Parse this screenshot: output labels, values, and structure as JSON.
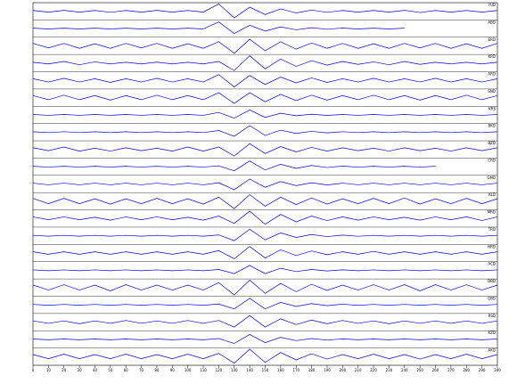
{
  "chart_data": {
    "type": "line",
    "x": [
      0,
      10,
      20,
      30,
      40,
      50,
      60,
      70,
      80,
      90,
      100,
      110,
      120,
      130,
      140,
      150,
      160,
      170,
      180,
      190,
      200,
      210,
      220,
      230,
      240,
      250,
      260,
      270,
      280,
      290,
      300
    ],
    "xlim": [
      0,
      300
    ],
    "xticks": [
      0,
      10,
      20,
      30,
      40,
      50,
      60,
      70,
      80,
      90,
      100,
      110,
      120,
      130,
      140,
      150,
      160,
      170,
      180,
      190,
      200,
      210,
      220,
      230,
      240,
      250,
      260,
      270,
      280,
      290,
      300
    ],
    "ylim": [
      -1,
      1
    ],
    "color": "#0000ff",
    "series": [
      {
        "name": "YUD",
        "values": [
          0.1,
          -0.1,
          0.12,
          -0.1,
          0.1,
          -0.12,
          0.1,
          -0.1,
          0.12,
          -0.1,
          0.1,
          -0.1,
          0.9,
          -0.8,
          0.5,
          -0.4,
          0.3,
          -0.2,
          0.15,
          -0.12,
          0.1,
          -0.1,
          0.1,
          -0.1,
          0.12,
          -0.15,
          0.1,
          -0.1,
          0.1,
          -0.1,
          0.1
        ]
      },
      {
        "name": "ABD",
        "values": [
          0.05,
          -0.05,
          0.05,
          -0.05,
          0.05,
          -0.05,
          0.05,
          -0.05,
          0.05,
          -0.05,
          0.05,
          -0.05,
          0.8,
          -0.6,
          0.4,
          -0.3,
          0.2,
          -0.15,
          0.1,
          -0.08,
          0.06,
          -0.05,
          0.05,
          -0.05,
          0.05,
          null,
          null,
          null,
          null,
          null,
          null
        ]
      },
      {
        "name": "ERD",
        "values": [
          0.3,
          -0.25,
          0.3,
          -0.3,
          0.25,
          -0.3,
          0.3,
          -0.25,
          0.3,
          -0.3,
          0.25,
          -0.3,
          0.5,
          -0.9,
          0.8,
          -0.6,
          0.5,
          -0.4,
          0.35,
          -0.3,
          0.3,
          -0.3,
          0.25,
          -0.3,
          0.3,
          -0.25,
          0.3,
          -0.3,
          0.25,
          -0.3,
          0.3
        ]
      },
      {
        "name": "KRD",
        "values": [
          0.1,
          -0.1,
          0.2,
          -0.2,
          0.15,
          -0.1,
          0.1,
          -0.1,
          0.12,
          -0.1,
          0.1,
          -0.1,
          0.2,
          -0.9,
          0.9,
          -0.7,
          0.5,
          -0.4,
          0.3,
          -0.25,
          0.2,
          -0.15,
          0.15,
          -0.2,
          0.2,
          -0.15,
          0.1,
          -0.1,
          0.1,
          -0.1,
          0.1
        ]
      },
      {
        "name": "ARD",
        "values": [
          0.2,
          -0.2,
          0.25,
          -0.2,
          0.2,
          -0.25,
          0.2,
          -0.2,
          0.25,
          -0.2,
          0.2,
          -0.2,
          0.7,
          -0.8,
          0.6,
          -0.5,
          0.4,
          -0.3,
          0.3,
          -0.25,
          0.2,
          -0.2,
          0.25,
          -0.2,
          0.2,
          -0.2,
          0.25,
          -0.2,
          0.2,
          -0.2,
          0.2
        ]
      },
      {
        "name": "SND",
        "values": [
          0.25,
          -0.25,
          0.3,
          -0.25,
          0.25,
          -0.3,
          0.25,
          -0.25,
          0.3,
          -0.25,
          0.25,
          -0.25,
          0.6,
          -0.7,
          0.6,
          -0.5,
          0.4,
          -0.35,
          0.3,
          -0.3,
          0.25,
          -0.25,
          0.3,
          -0.25,
          0.25,
          -0.3,
          0.25,
          -0.25,
          0.3,
          -0.25,
          0.25
        ]
      },
      {
        "name": "KRS",
        "values": [
          0.05,
          -0.05,
          0.05,
          -0.05,
          0.05,
          -0.05,
          0.05,
          -0.05,
          0.05,
          -0.05,
          0.05,
          -0.05,
          0.3,
          -0.4,
          0.6,
          -0.3,
          0.2,
          -0.1,
          0.08,
          -0.06,
          0.05,
          -0.05,
          0.05,
          -0.05,
          0.05,
          -0.05,
          0.05,
          -0.05,
          0.05,
          -0.05,
          0.05
        ]
      },
      {
        "name": "BKD",
        "values": [
          0.05,
          -0.05,
          0.06,
          -0.05,
          0.05,
          -0.05,
          0.05,
          -0.05,
          0.05,
          -0.05,
          0.05,
          -0.05,
          0.2,
          -0.5,
          0.8,
          -0.4,
          0.25,
          -0.15,
          0.1,
          -0.08,
          0.06,
          -0.05,
          0.05,
          -0.05,
          0.05,
          -0.05,
          0.05,
          -0.05,
          0.05,
          -0.05,
          0.05
        ]
      },
      {
        "name": "BZD",
        "values": [
          0.2,
          -0.15,
          0.3,
          -0.2,
          0.15,
          -0.2,
          0.2,
          -0.15,
          0.15,
          -0.2,
          0.3,
          -0.2,
          0.3,
          -0.8,
          0.7,
          -0.5,
          0.35,
          -0.3,
          0.25,
          -0.2,
          0.2,
          -0.15,
          0.15,
          -0.2,
          0.2,
          -0.15,
          0.15,
          -0.2,
          0.2,
          -0.15,
          0.2
        ]
      },
      {
        "name": "CRD",
        "values": [
          0.05,
          -0.05,
          0.05,
          -0.05,
          0.05,
          -0.05,
          0.05,
          -0.05,
          0.05,
          -0.05,
          0.05,
          -0.05,
          0.1,
          -0.5,
          0.7,
          -0.4,
          0.3,
          -0.2,
          0.15,
          -0.1,
          0.08,
          -0.06,
          0.05,
          -0.05,
          0.05,
          -0.05,
          0.05,
          null,
          null,
          null,
          null
        ]
      },
      {
        "name": "GMD",
        "values": [
          0.1,
          -0.1,
          0.1,
          -0.1,
          0.1,
          -0.1,
          0.1,
          -0.1,
          0.1,
          -0.1,
          0.1,
          -0.1,
          0.15,
          -0.7,
          0.6,
          -0.4,
          0.3,
          -0.2,
          0.15,
          -0.12,
          0.1,
          -0.1,
          0.1,
          -0.1,
          0.1,
          -0.1,
          0.1,
          -0.1,
          0.1,
          -0.1,
          0.1
        ]
      },
      {
        "name": "KLD",
        "values": [
          0.35,
          -0.3,
          0.35,
          -0.3,
          0.3,
          -0.35,
          0.3,
          -0.3,
          0.35,
          -0.3,
          0.3,
          -0.35,
          0.5,
          -0.9,
          0.8,
          -0.6,
          0.5,
          -0.4,
          0.4,
          -0.35,
          0.3,
          -0.3,
          0.35,
          -0.3,
          0.4,
          -0.35,
          0.3,
          -0.3,
          0.35,
          -0.3,
          0.3
        ]
      },
      {
        "name": "MRD",
        "values": [
          0.2,
          -0.15,
          0.2,
          -0.15,
          0.15,
          -0.2,
          0.2,
          -0.15,
          0.2,
          -0.15,
          0.15,
          -0.2,
          0.3,
          -0.6,
          0.9,
          -0.7,
          0.5,
          -0.4,
          0.3,
          -0.25,
          0.2,
          -0.2,
          0.2,
          -0.15,
          0.15,
          -0.2,
          0.2,
          -0.15,
          0.2,
          -0.25,
          0.2
        ]
      },
      {
        "name": "TRD",
        "values": [
          0.05,
          -0.05,
          0.05,
          -0.05,
          0.05,
          -0.05,
          0.05,
          -0.05,
          0.05,
          -0.05,
          0.05,
          -0.05,
          0.1,
          -0.6,
          0.8,
          -0.5,
          0.35,
          -0.2,
          0.15,
          -0.1,
          0.08,
          -0.06,
          0.05,
          -0.05,
          0.05,
          -0.05,
          0.05,
          -0.05,
          0.05,
          -0.05,
          0.05
        ]
      },
      {
        "name": "HRD",
        "values": [
          0.15,
          -0.15,
          0.15,
          -0.15,
          0.15,
          -0.15,
          0.15,
          -0.15,
          0.15,
          -0.15,
          0.15,
          -0.15,
          0.3,
          -0.7,
          0.8,
          -0.6,
          0.4,
          -0.3,
          0.25,
          -0.2,
          0.15,
          -0.15,
          0.2,
          -0.15,
          0.15,
          -0.15,
          0.15,
          -0.15,
          0.15,
          -0.15,
          0.15
        ]
      },
      {
        "name": "ACD",
        "values": [
          0.05,
          -0.05,
          0.05,
          -0.05,
          0.05,
          -0.05,
          0.05,
          -0.05,
          0.05,
          -0.05,
          0.05,
          -0.05,
          0.1,
          -0.4,
          0.6,
          -0.4,
          0.25,
          -0.15,
          0.1,
          -0.08,
          0.06,
          -0.05,
          0.05,
          -0.05,
          0.05,
          -0.05,
          0.05,
          -0.05,
          0.05,
          -0.05,
          0.05
        ]
      },
      {
        "name": "DBD",
        "values": [
          0.3,
          -0.3,
          0.35,
          -0.3,
          0.3,
          -0.4,
          0.35,
          -0.3,
          0.3,
          -0.3,
          0.3,
          -0.3,
          0.6,
          -0.9,
          0.9,
          -0.7,
          0.5,
          -0.5,
          0.4,
          -0.35,
          0.3,
          -0.3,
          0.35,
          -0.3,
          0.35,
          -0.4,
          0.35,
          -0.3,
          0.35,
          -0.3,
          0.3
        ]
      },
      {
        "name": "GBD",
        "values": [
          0.05,
          -0.05,
          0.05,
          -0.05,
          0.05,
          -0.05,
          0.05,
          -0.05,
          0.05,
          -0.05,
          0.05,
          -0.05,
          0.1,
          -0.5,
          0.8,
          -0.5,
          0.3,
          -0.2,
          0.15,
          -0.1,
          0.08,
          -0.06,
          0.05,
          -0.05,
          0.05,
          -0.05,
          0.05,
          -0.05,
          0.05,
          -0.05,
          0.05
        ]
      },
      {
        "name": "RSD",
        "values": [
          0.15,
          -0.15,
          0.15,
          -0.2,
          0.15,
          -0.15,
          0.2,
          -0.15,
          0.15,
          -0.15,
          0.2,
          -0.15,
          0.2,
          -0.6,
          0.8,
          -0.6,
          0.4,
          -0.3,
          0.25,
          -0.2,
          0.2,
          -0.15,
          0.15,
          -0.2,
          0.15,
          -0.15,
          0.15,
          -0.15,
          0.15,
          -0.15,
          0.15
        ]
      },
      {
        "name": "KZD",
        "values": [
          0.05,
          -0.05,
          0.05,
          -0.05,
          0.05,
          -0.05,
          0.05,
          -0.05,
          0.05,
          -0.05,
          0.05,
          -0.05,
          0.1,
          -0.5,
          0.6,
          -0.4,
          0.25,
          -0.15,
          0.1,
          -0.08,
          0.06,
          -0.05,
          0.05,
          -0.05,
          0.05,
          -0.05,
          0.05,
          -0.05,
          0.05,
          -0.05,
          0.05
        ]
      },
      {
        "name": "AKD",
        "values": [
          0.25,
          -0.25,
          0.3,
          -0.25,
          0.25,
          -0.25,
          0.3,
          -0.25,
          0.25,
          -0.25,
          0.3,
          -0.25,
          0.4,
          -0.8,
          0.9,
          -0.7,
          0.5,
          -0.4,
          0.35,
          -0.3,
          0.25,
          -0.25,
          0.3,
          -0.25,
          0.25,
          -0.3,
          0.25,
          -0.25,
          0.3,
          -0.25,
          0.25
        ]
      }
    ]
  }
}
